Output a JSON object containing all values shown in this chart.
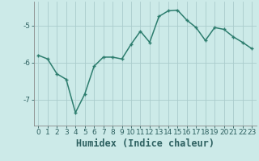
{
  "x": [
    0,
    1,
    2,
    3,
    4,
    5,
    6,
    7,
    8,
    9,
    10,
    11,
    12,
    13,
    14,
    15,
    16,
    17,
    18,
    19,
    20,
    21,
    22,
    23
  ],
  "y": [
    -5.8,
    -5.9,
    -6.3,
    -6.45,
    -7.35,
    -6.85,
    -6.1,
    -5.85,
    -5.85,
    -5.9,
    -5.5,
    -5.15,
    -5.45,
    -4.75,
    -4.6,
    -4.58,
    -4.85,
    -5.05,
    -5.4,
    -5.05,
    -5.1,
    -5.3,
    -5.45,
    -5.62
  ],
  "xlabel": "Humidex (Indice chaleur)",
  "ylabel": "",
  "background_color": "#cceae8",
  "line_color": "#2d7d6e",
  "marker": "+",
  "marker_color": "#2d7d6e",
  "grid_color": "#aacccc",
  "ylim": [
    -7.7,
    -4.35
  ],
  "xlim": [
    -0.5,
    23.5
  ],
  "yticks": [
    -7,
    -6,
    -5
  ],
  "xticks": [
    0,
    1,
    2,
    3,
    4,
    5,
    6,
    7,
    8,
    9,
    10,
    11,
    12,
    13,
    14,
    15,
    16,
    17,
    18,
    19,
    20,
    21,
    22,
    23
  ],
  "tick_fontsize": 6.5,
  "xlabel_fontsize": 8.5,
  "linewidth": 1.1,
  "markersize": 3.5
}
